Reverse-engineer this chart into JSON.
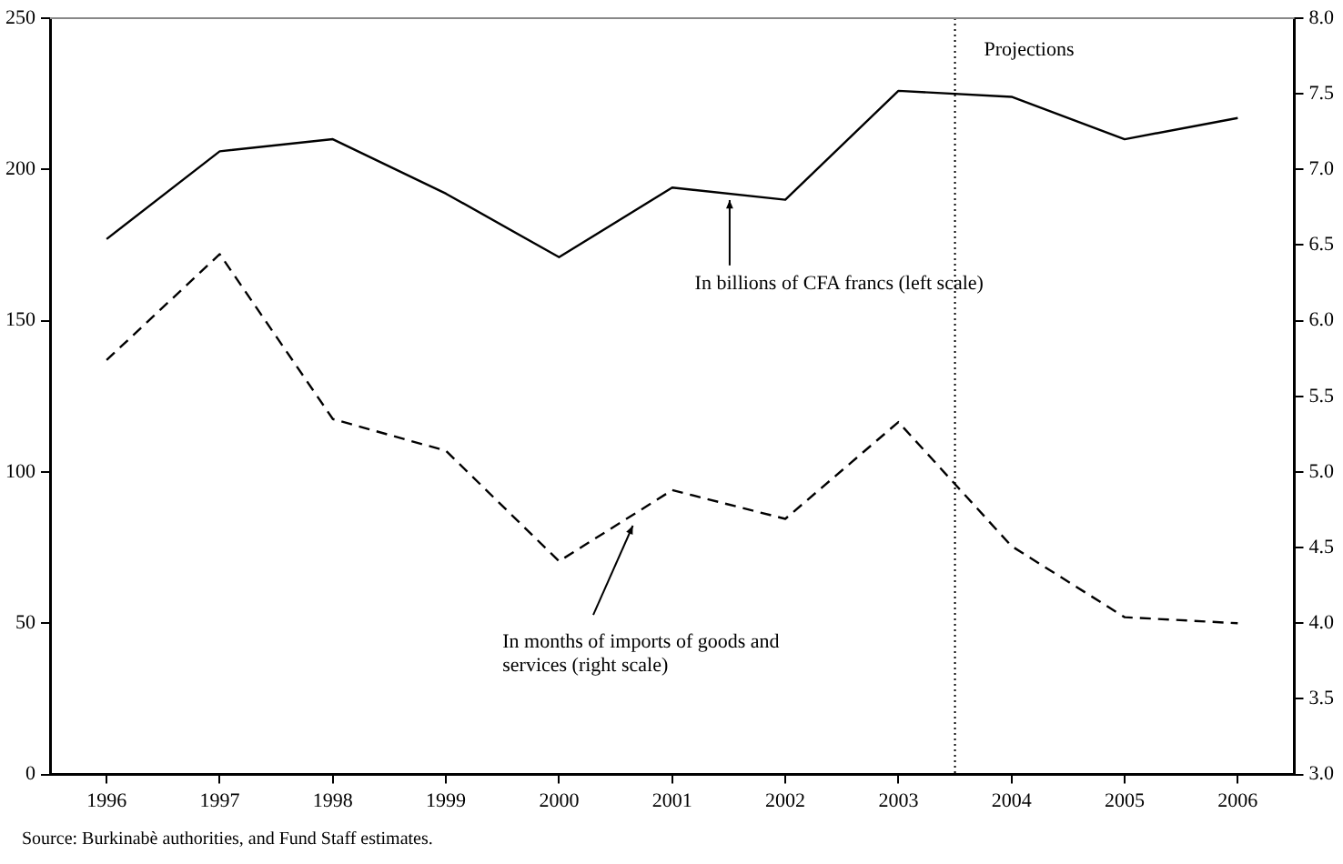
{
  "chart_data": {
    "type": "line",
    "x": [
      1996,
      1997,
      1998,
      1999,
      2000,
      2001,
      2002,
      2003,
      2004,
      2005,
      2006
    ],
    "xlim": [
      1995.5,
      2006.5
    ],
    "xticks": [
      1996,
      1997,
      1998,
      1999,
      2000,
      2001,
      2002,
      2003,
      2004,
      2005,
      2006
    ],
    "ylim": [
      0,
      250
    ],
    "yticks": [
      0,
      50,
      100,
      150,
      200,
      250
    ],
    "y2lim": [
      3.0,
      8.0
    ],
    "y2ticks": [
      {
        "value": 3,
        "label": "3.0"
      },
      {
        "value": 3.5,
        "label": "3.5"
      },
      {
        "value": 4,
        "label": "4.0"
      },
      {
        "value": 4.5,
        "label": "4.5"
      },
      {
        "value": 5,
        "label": "5.0"
      },
      {
        "value": 5.5,
        "label": "5.5"
      },
      {
        "value": 6,
        "label": "6.0"
      },
      {
        "value": 6.5,
        "label": "6.5"
      },
      {
        "value": 7,
        "label": "7.0"
      },
      {
        "value": 7.5,
        "label": "7.5"
      },
      {
        "value": 8,
        "label": "8.0"
      }
    ],
    "series": [
      {
        "color": "#000000",
        "line_style": "solid",
        "values": [
          177,
          206,
          210,
          192,
          171,
          194,
          190,
          226,
          224,
          210,
          217
        ]
      },
      {
        "color": "#000000",
        "line_style": "dashed",
        "axis": "y2",
        "values": [
          5.74,
          6.44,
          5.35,
          5.14,
          4.41,
          4.88,
          4.69,
          5.33,
          4.51,
          4.04,
          4.0
        ]
      }
    ],
    "ref_lines": [
      {
        "axis": "x",
        "value": 2003.5,
        "label": "Projections",
        "line_style": "dotted",
        "color": "#000000"
      }
    ],
    "annotations": [
      "In billions of CFA francs (left scale)",
      "In months of imports of goods and services (right scale)",
      "Source: Burkinabè authorities, and Fund Staff estimates."
    ],
    "grid": false,
    "legend": false,
    "marker": "none"
  }
}
